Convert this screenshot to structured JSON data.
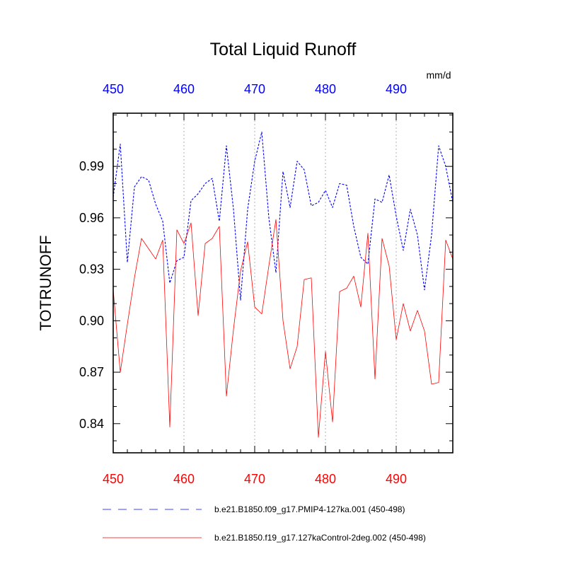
{
  "chart_data": {
    "type": "line",
    "title": "Total Liquid Runoff",
    "ylabel": "TOTRUNOFF",
    "units": "mm/d",
    "xlim": [
      450,
      498
    ],
    "ylim": [
      0.823,
      1.021
    ],
    "xticks": [
      450,
      460,
      470,
      480,
      490
    ],
    "yticks": [
      0.84,
      0.87,
      0.9,
      0.93,
      0.96,
      0.99
    ],
    "ytick_labels": [
      "0.84",
      "0.87",
      "0.90",
      "0.93",
      "0.96",
      "0.99"
    ],
    "top_axis_color": "#0000ff",
    "bottom_axis_color": "#ff0000",
    "grid": "vertical dotted",
    "legend_position": "bottom",
    "series": [
      {
        "name": "b.e21.B1850.f09_g17.PMIP4-127ka.001 (450-498)",
        "color": "#0000ff",
        "style": "dashed",
        "x": [
          450,
          451,
          452,
          453,
          454,
          455,
          456,
          457,
          458,
          459,
          460,
          461,
          462,
          463,
          464,
          465,
          466,
          467,
          468,
          469,
          470,
          471,
          472,
          473,
          474,
          475,
          476,
          477,
          478,
          479,
          480,
          481,
          482,
          483,
          484,
          485,
          486,
          487,
          488,
          489,
          490,
          491,
          492,
          493,
          494,
          495,
          496,
          497,
          498
        ],
        "values": [
          0.972,
          1.003,
          0.934,
          0.978,
          0.984,
          0.982,
          0.968,
          0.958,
          0.922,
          0.935,
          0.937,
          0.97,
          0.974,
          0.98,
          0.983,
          0.958,
          1.002,
          0.965,
          0.912,
          0.965,
          0.993,
          1.01,
          0.96,
          0.928,
          0.987,
          0.966,
          0.993,
          0.988,
          0.967,
          0.969,
          0.976,
          0.966,
          0.98,
          0.979,
          0.955,
          0.937,
          0.933,
          0.971,
          0.969,
          0.985,
          0.961,
          0.941,
          0.965,
          0.95,
          0.918,
          0.95,
          1.002,
          0.99,
          0.969
        ]
      },
      {
        "name": "b.e21.B1850.f19_g17.127kaControl-2deg.002 (450-498)",
        "color": "#ff0000",
        "style": "solid",
        "x": [
          450,
          451,
          452,
          453,
          454,
          455,
          456,
          457,
          458,
          459,
          460,
          461,
          462,
          463,
          464,
          465,
          466,
          467,
          468,
          469,
          470,
          471,
          472,
          473,
          474,
          475,
          476,
          477,
          478,
          479,
          480,
          481,
          482,
          483,
          484,
          485,
          486,
          487,
          488,
          489,
          490,
          491,
          492,
          493,
          494,
          495,
          496,
          497,
          498
        ],
        "values": [
          0.918,
          0.87,
          0.898,
          0.925,
          0.948,
          0.942,
          0.936,
          0.947,
          0.838,
          0.953,
          0.945,
          0.957,
          0.903,
          0.945,
          0.948,
          0.955,
          0.856,
          0.895,
          0.929,
          0.946,
          0.908,
          0.904,
          0.932,
          0.959,
          0.9,
          0.872,
          0.885,
          0.924,
          0.925,
          0.832,
          0.882,
          0.841,
          0.917,
          0.919,
          0.926,
          0.908,
          0.951,
          0.866,
          0.948,
          0.932,
          0.889,
          0.91,
          0.894,
          0.906,
          0.894,
          0.863,
          0.864,
          0.947,
          0.936
        ]
      }
    ]
  }
}
